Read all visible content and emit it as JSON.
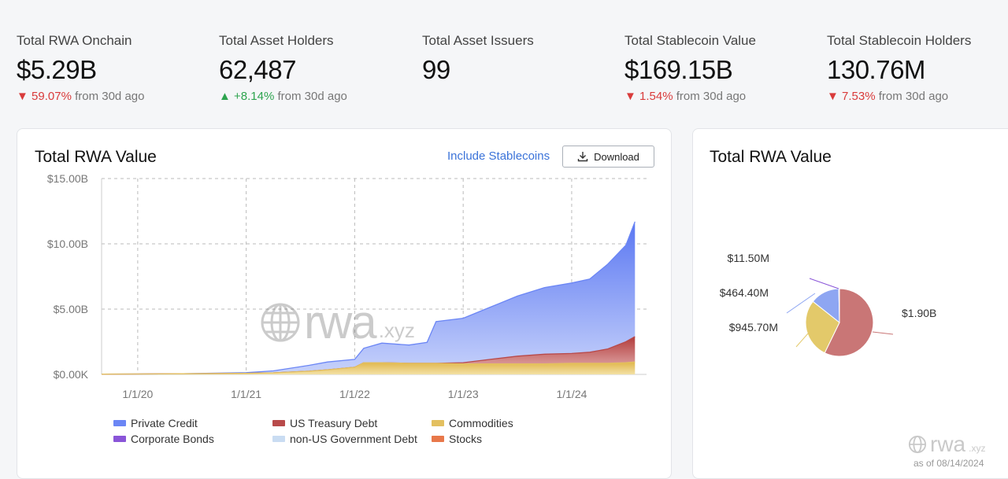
{
  "stats": [
    {
      "label": "Total RWA Onchain",
      "value": "$5.29B",
      "change_dir": "down",
      "change_arrow": "▼",
      "change_value": "59.07%",
      "change_suffix": "from 30d ago"
    },
    {
      "label": "Total Asset Holders",
      "value": "62,487",
      "change_dir": "up",
      "change_arrow": "▲",
      "change_value": "+8.14%",
      "change_suffix": "from 30d ago"
    },
    {
      "label": "Total Asset Issuers",
      "value": "99",
      "change_dir": "",
      "change_arrow": "",
      "change_value": "",
      "change_suffix": ""
    },
    {
      "label": "Total Stablecoin Value",
      "value": "$169.15B",
      "change_dir": "down",
      "change_arrow": "▼",
      "change_value": "1.54%",
      "change_suffix": "from 30d ago"
    },
    {
      "label": "Total Stablecoin Holders",
      "value": "130.76M",
      "change_dir": "down",
      "change_arrow": "▼",
      "change_value": "7.53%",
      "change_suffix": "from 30d ago"
    }
  ],
  "area_card": {
    "title": "Total RWA Value",
    "include_label": "Include Stablecoins",
    "download_label": "Download",
    "watermark": "rwa",
    "watermark_suffix": ".xyz"
  },
  "pie_card": {
    "title": "Total RWA Value",
    "watermark": "rwa",
    "watermark_suffix": ".xyz",
    "as_of": "as of 08/14/2024"
  },
  "colors": {
    "private_credit": "#6b86f5",
    "us_treasury": "#b84a4a",
    "commodities": "#e3c060",
    "corporate_bonds": "#8a55d8",
    "non_us_gov": "#c9dcf2",
    "stocks": "#e8784a",
    "pie_treasury": "#c97676",
    "pie_commodities": "#e3c96a",
    "pie_credit": "#8ea6f2"
  },
  "chart_data": [
    {
      "type": "area",
      "stacked": true,
      "y_ticks": [
        "$15.00B",
        "$10.00B",
        "$5.00B",
        "$0.00K"
      ],
      "ylim": [
        0,
        15
      ],
      "x_ticks": [
        "1/1/20",
        "1/1/21",
        "1/1/22",
        "1/1/23",
        "1/1/24"
      ],
      "grid": true,
      "x": [
        "2019-09",
        "2020-01",
        "2020-06",
        "2021-01",
        "2021-04",
        "2021-08",
        "2021-10",
        "2022-01",
        "2022-02",
        "2022-04",
        "2022-07",
        "2022-09",
        "2022-10",
        "2023-01",
        "2023-04",
        "2023-07",
        "2023-10",
        "2024-01",
        "2024-03",
        "2024-05",
        "2024-07",
        "2024-08"
      ],
      "series": [
        {
          "name": "Commodities",
          "key": "commodities",
          "values": [
            0.02,
            0.03,
            0.05,
            0.08,
            0.12,
            0.25,
            0.35,
            0.55,
            0.9,
            0.9,
            0.85,
            0.85,
            0.85,
            0.8,
            0.8,
            0.8,
            0.8,
            0.85,
            0.85,
            0.85,
            0.9,
            0.95
          ]
        },
        {
          "name": "US Treasury Debt",
          "key": "us_treasury",
          "values": [
            0,
            0,
            0,
            0,
            0,
            0,
            0,
            0,
            0,
            0,
            0,
            0,
            0,
            0.1,
            0.35,
            0.6,
            0.75,
            0.75,
            0.85,
            1.1,
            1.6,
            1.95
          ]
        },
        {
          "name": "Private Credit",
          "key": "private_credit",
          "values": [
            0,
            0,
            0,
            0.05,
            0.15,
            0.45,
            0.6,
            0.6,
            1.1,
            1.5,
            1.4,
            1.6,
            3.2,
            3.4,
            4.0,
            4.6,
            5.1,
            5.4,
            5.6,
            6.5,
            7.4,
            8.8
          ]
        },
        {
          "name": "Corporate Bonds",
          "key": "corporate_bonds",
          "values": [
            0,
            0,
            0,
            0,
            0,
            0,
            0,
            0,
            0,
            0,
            0,
            0,
            0,
            0,
            0,
            0,
            0,
            0,
            0,
            0,
            0,
            0
          ]
        },
        {
          "name": "non-US Government Debt",
          "key": "non_us_gov",
          "values": [
            0,
            0,
            0,
            0,
            0,
            0,
            0,
            0,
            0,
            0,
            0,
            0,
            0,
            0,
            0,
            0,
            0,
            0,
            0,
            0,
            0,
            0
          ]
        },
        {
          "name": "Stocks",
          "key": "stocks",
          "values": [
            0,
            0,
            0,
            0,
            0,
            0,
            0,
            0,
            0,
            0,
            0,
            0,
            0,
            0,
            0,
            0,
            0,
            0,
            0,
            0,
            0,
            0
          ]
        }
      ],
      "legend": [
        {
          "name": "Private Credit",
          "key": "private_credit"
        },
        {
          "name": "US Treasury Debt",
          "key": "us_treasury"
        },
        {
          "name": "Commodities",
          "key": "commodities"
        },
        {
          "name": "Corporate Bonds",
          "key": "corporate_bonds"
        },
        {
          "name": "non-US Government Debt",
          "key": "non_us_gov"
        },
        {
          "name": "Stocks",
          "key": "stocks"
        }
      ]
    },
    {
      "type": "pie",
      "slices": [
        {
          "label": "$1.90B",
          "value": 1.9,
          "key": "pie_treasury"
        },
        {
          "label": "$945.70M",
          "value": 0.9457,
          "key": "pie_commodities"
        },
        {
          "label": "$464.40M",
          "value": 0.4644,
          "key": "pie_credit"
        },
        {
          "label": "$11.50M",
          "value": 0.0115,
          "key": "corporate_bonds"
        }
      ]
    }
  ]
}
